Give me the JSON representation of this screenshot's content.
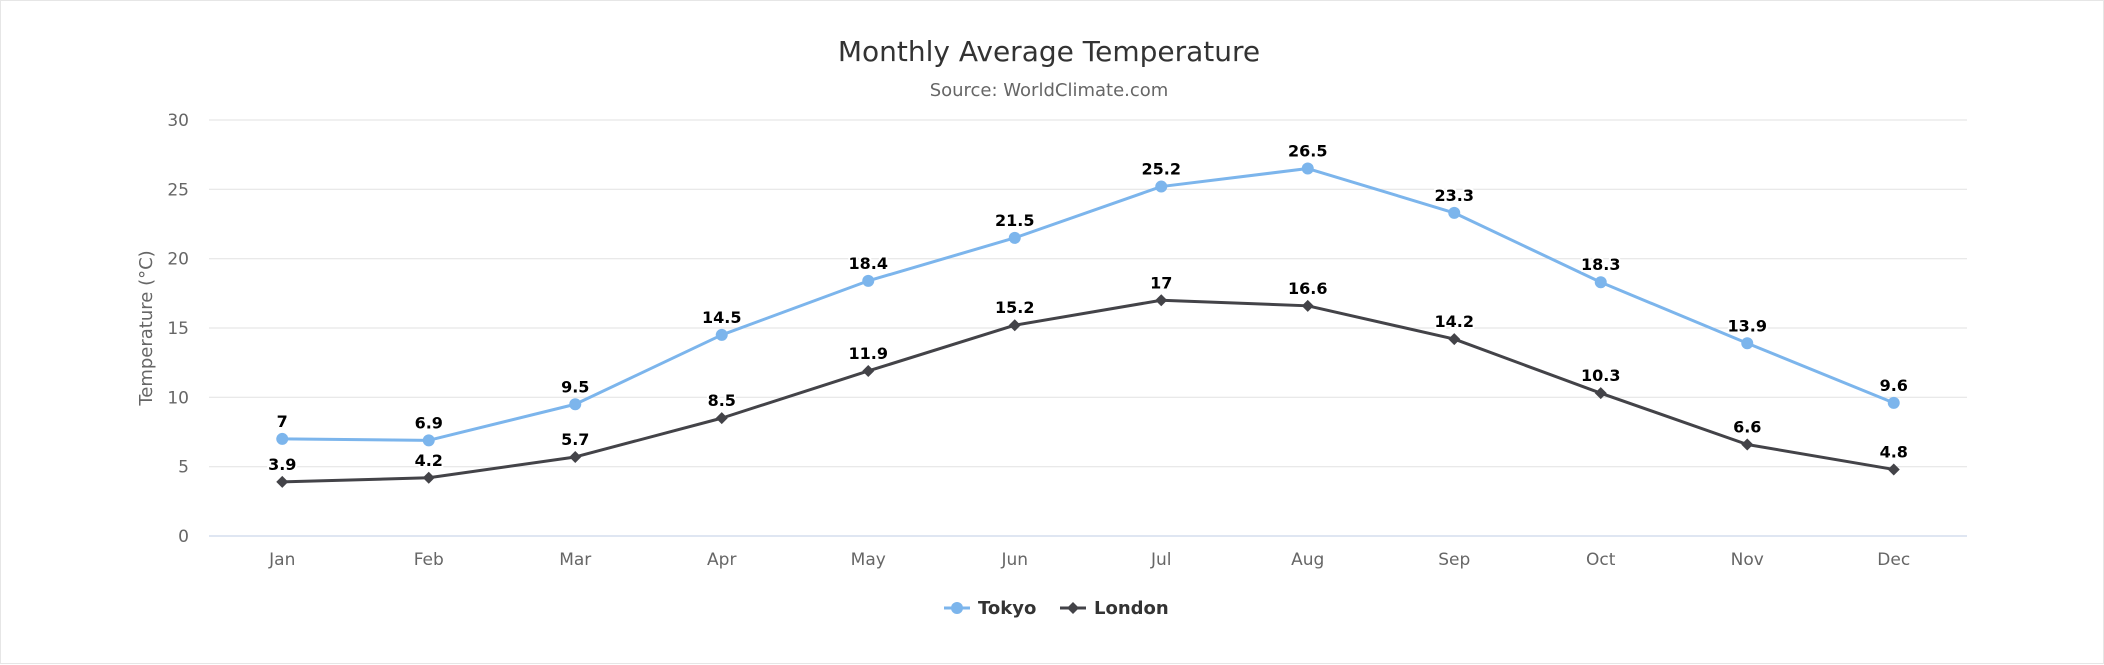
{
  "chart_data": {
    "type": "line",
    "title": "Monthly Average Temperature",
    "subtitle": "Source: WorldClimate.com",
    "ylabel": "Temperature (°C)",
    "xlabel": "",
    "categories": [
      "Jan",
      "Feb",
      "Mar",
      "Apr",
      "May",
      "Jun",
      "Jul",
      "Aug",
      "Sep",
      "Oct",
      "Nov",
      "Dec"
    ],
    "ylim": [
      0,
      30
    ],
    "yticks": [
      0,
      5,
      10,
      15,
      20,
      25,
      30
    ],
    "grid": true,
    "legend_position": "bottom-center",
    "data_labels": true,
    "series": [
      {
        "name": "Tokyo",
        "color": "#7cb5ec",
        "marker": "circle",
        "values": [
          7,
          6.9,
          9.5,
          14.5,
          18.4,
          21.5,
          25.2,
          26.5,
          23.3,
          18.3,
          13.9,
          9.6
        ]
      },
      {
        "name": "London",
        "color": "#434348",
        "marker": "diamond",
        "values": [
          3.9,
          4.2,
          5.7,
          8.5,
          11.9,
          15.2,
          17,
          16.6,
          14.2,
          10.3,
          6.6,
          4.8
        ]
      }
    ]
  },
  "colors": {
    "grid": "#e6e6e6",
    "axis_line": "#ccd6eb",
    "background": "#ffffff"
  }
}
